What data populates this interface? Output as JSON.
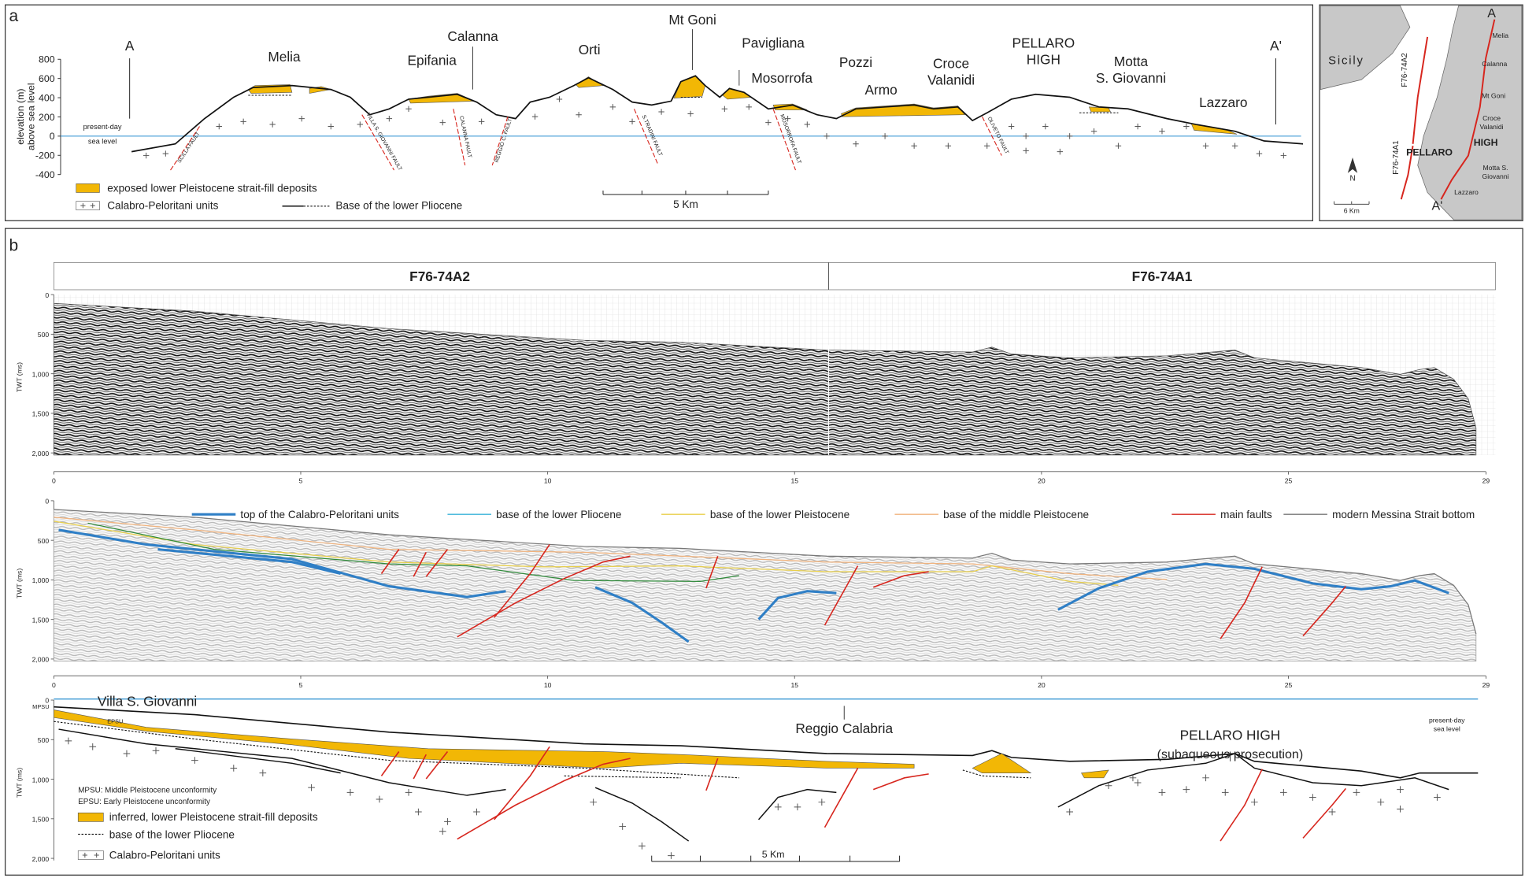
{
  "panel_a": {
    "label": "a",
    "start": "A",
    "end": "A'",
    "places": [
      [
        "Melia"
      ],
      [
        "Epifania"
      ],
      [
        "Calanna"
      ],
      [
        "Orti"
      ],
      [
        "Mt Goni"
      ],
      [
        "Pavigliana"
      ],
      [
        "Mosorrofa"
      ],
      [
        "Pozzi"
      ],
      [
        "Armo"
      ],
      [
        "Croce",
        "Valanidi"
      ],
      [
        "PELLARO",
        "HIGH"
      ],
      [
        "Motta",
        "S. Giovanni"
      ],
      [
        "Lazzaro"
      ]
    ],
    "y_axis_label": [
      "elevation (m)",
      "above sea level"
    ],
    "y_ticks": [
      "800",
      "600",
      "400",
      "200",
      "0",
      "-200",
      "-400"
    ],
    "sea_level": [
      "present-day",
      "sea level"
    ],
    "faults": [
      "SCILLA FAULT",
      "VILLA S. GIOVANNI FAULT",
      "CALANNA FAULT",
      "REGGIO C. FAULT",
      "S.TRADINI FAULT",
      "MOSORROFA FAULT",
      "OLIVETO FAULT"
    ],
    "legend": {
      "deposits": "exposed lower Pleistocene strait-fill deposits",
      "units": "Calabro-Peloritani units",
      "base": "Base of the lower Pliocene"
    },
    "scale": "5 Km"
  },
  "map": {
    "sicily": "Sicily",
    "lines": [
      "F76-74A2",
      "F76-74A1"
    ],
    "high": [
      "PELLARO",
      "HIGH"
    ],
    "start": "A",
    "end": "A'",
    "places": [
      [
        "Melia"
      ],
      [
        "Calanna"
      ],
      [
        "Mt Goni"
      ],
      [
        "Croce",
        "Valanidi"
      ],
      [
        "Motta S.",
        "Giovanni"
      ],
      [
        "Lazzaro"
      ]
    ],
    "north": "N",
    "scale": "6 Km"
  },
  "panel_b": {
    "label": "b",
    "profiles": [
      "F76-74A2",
      "F76-74A1"
    ],
    "twt_label": "TWT (ms)",
    "y_ticks": [
      "0",
      "500",
      "1,000",
      "1,500",
      "2,000"
    ],
    "x_ticks": [
      "0",
      "5",
      "10",
      "15",
      "20",
      "25",
      "29"
    ],
    "legend": [
      "top of the Calabro-Peloritani units",
      "base of the lower Pliocene",
      "base of the lower Pleistocene",
      "base of the middle Pleistocene",
      "main faults",
      "modern Messina Strait bottom"
    ],
    "model": {
      "villa": "Villa S. Giovanni",
      "mpsu": "MPSU",
      "epsu": "EPSU",
      "reggio": "Reggio Calabria",
      "high": [
        "PELLARO HIGH",
        "(subaqueous prosecution)"
      ],
      "sea_level": [
        "present-day",
        "sea level"
      ],
      "legend": [
        "MPSU: Middle Pleistocene unconformity",
        "EPSU: Early Pleistocene unconformity",
        "inferred, lower Pleistocene strait-fill deposits",
        "base of the lower Pliocene",
        "Calabro-Peloritani units"
      ],
      "scale": "5 Km"
    }
  }
}
